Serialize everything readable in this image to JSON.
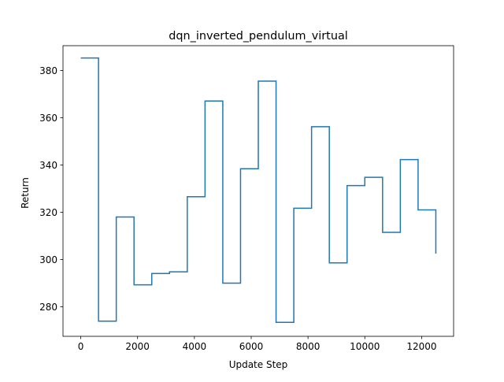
{
  "chart_data": {
    "type": "line",
    "drawstyle": "steps-post",
    "title": "dqn_inverted_pendulum_virtual",
    "xlabel": "Update Step",
    "ylabel": "Return",
    "xlim": [
      -625,
      13125
    ],
    "ylim": [
      267.5,
      390.5
    ],
    "xticks": [
      0,
      2000,
      4000,
      6000,
      8000,
      10000,
      12000
    ],
    "xtick_labels": [
      "0",
      "2000",
      "4000",
      "6000",
      "8000",
      "10000",
      "12000"
    ],
    "yticks": [
      280,
      300,
      320,
      340,
      360,
      380
    ],
    "ytick_labels": [
      "280",
      "300",
      "320",
      "340",
      "360",
      "380"
    ],
    "grid": false,
    "series": [
      {
        "color": "#1f77b4",
        "x": [
          0,
          625,
          1250,
          1875,
          2500,
          3125,
          3750,
          4375,
          5000,
          5625,
          6250,
          6875,
          7500,
          8125,
          8750,
          9375,
          10000,
          10625,
          11250,
          11875,
          12500
        ],
        "y": [
          385.3,
          273.9,
          318.0,
          289.3,
          294.1,
          294.8,
          326.6,
          367.1,
          290.0,
          338.4,
          375.5,
          273.4,
          321.7,
          356.2,
          298.6,
          331.3,
          334.8,
          311.5,
          342.3,
          321.0,
          302.5
        ]
      }
    ]
  }
}
